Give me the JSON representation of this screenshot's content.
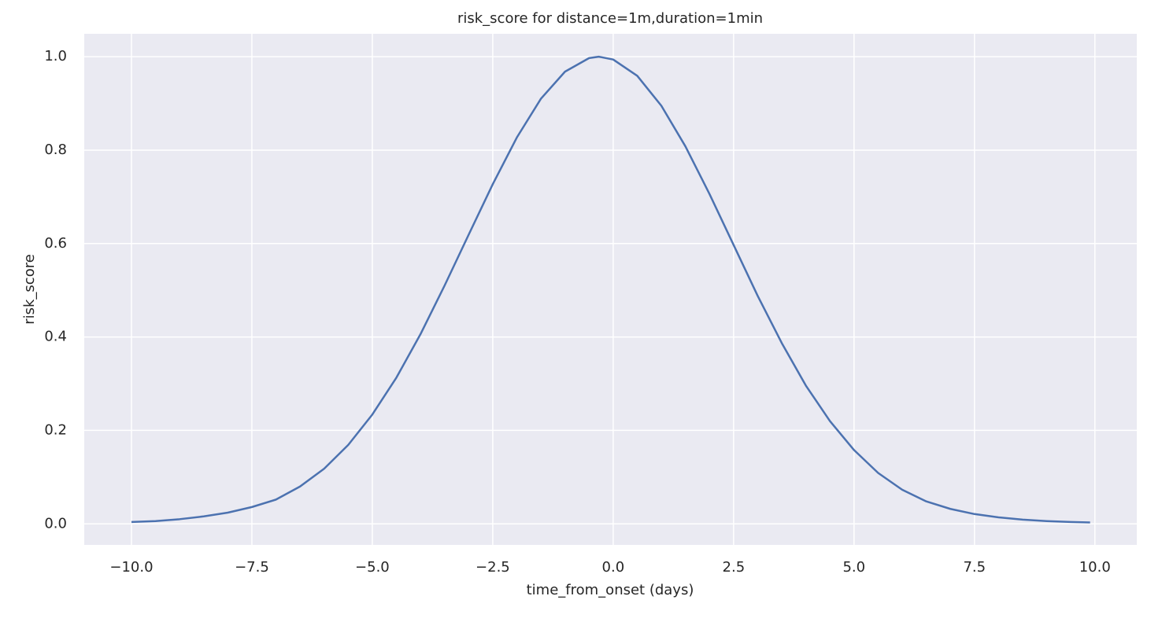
{
  "chart_data": {
    "type": "line",
    "title": "risk_score for distance=1m,duration=1min",
    "x_label": "time_from_onset (days)",
    "y_label": "risk_score",
    "x": [
      -10,
      -9.5,
      -9,
      -8.5,
      -8,
      -7.5,
      -7,
      -6.5,
      -6,
      -5.5,
      -5,
      -4.5,
      -4,
      -3.5,
      -3,
      -2.5,
      -2,
      -1.5,
      -1,
      -0.5,
      -0.3,
      0,
      0.5,
      1,
      1.5,
      2,
      2.5,
      3,
      3.5,
      4,
      4.5,
      5,
      5.5,
      6,
      6.5,
      7,
      7.5,
      8,
      8.5,
      9,
      9.5,
      9.9
    ],
    "series": [
      {
        "name": "risk_score",
        "color": "#4c72b0",
        "values": [
          0.004,
          0.006,
          0.01,
          0.016,
          0.024,
          0.036,
          0.052,
          0.08,
          0.118,
          0.169,
          0.234,
          0.313,
          0.406,
          0.51,
          0.619,
          0.727,
          0.827,
          0.91,
          0.968,
          0.997,
          1.0,
          0.994,
          0.959,
          0.895,
          0.808,
          0.706,
          0.597,
          0.488,
          0.387,
          0.296,
          0.22,
          0.158,
          0.109,
          0.073,
          0.048,
          0.032,
          0.021,
          0.014,
          0.009,
          0.006,
          0.004,
          0.003
        ]
      }
    ],
    "xlim": [
      -10.98,
      10.87
    ],
    "ylim": [
      -0.045,
      1.049
    ],
    "xticks": [
      {
        "value": -10,
        "label": "−10.0"
      },
      {
        "value": -7.5,
        "label": "−7.5"
      },
      {
        "value": -5,
        "label": "−5.0"
      },
      {
        "value": -2.5,
        "label": "−2.5"
      },
      {
        "value": 0,
        "label": "0.0"
      },
      2.5,
      {
        "value": 5,
        "label": "5.0"
      },
      7.5,
      {
        "value": 10,
        "label": "10.0"
      }
    ],
    "yticks": [
      {
        "value": 0,
        "label": "0.0"
      },
      0.2,
      0.4,
      0.6,
      0.8,
      {
        "value": 1,
        "label": "1.0"
      }
    ],
    "grid": true,
    "background": "#eaeaf2"
  }
}
